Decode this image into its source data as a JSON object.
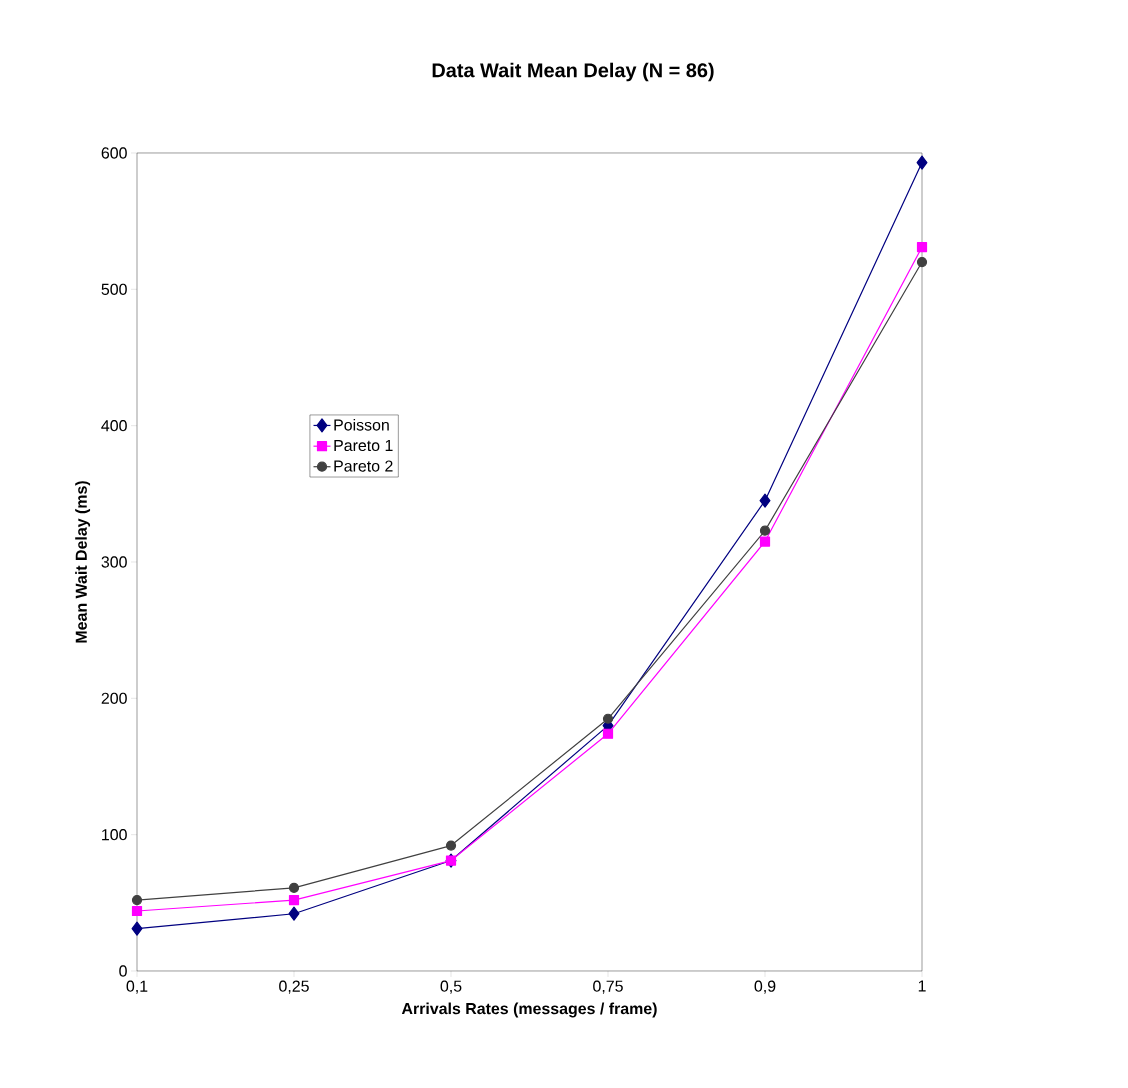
{
  "chart_data": {
    "type": "line",
    "title": "Data Wait Mean Delay (N = 86)",
    "xlabel": "Arrivals Rates (messages / frame)",
    "ylabel": "Mean Wait Delay (ms)",
    "categories": [
      "0,1",
      "0,25",
      "0,5",
      "0,75",
      "0,9",
      "1"
    ],
    "series": [
      {
        "name": "Poisson",
        "color": "#000080",
        "marker": "diamond",
        "values": [
          31,
          42,
          81,
          180,
          345,
          593
        ]
      },
      {
        "name": "Pareto 1",
        "color": "#ff00ff",
        "marker": "square",
        "values": [
          44,
          52,
          81,
          174,
          315,
          531
        ]
      },
      {
        "name": "Pareto 2",
        "color": "#404040",
        "marker": "circle",
        "values": [
          52,
          61,
          92,
          185,
          323,
          520
        ]
      }
    ],
    "ylim": [
      0,
      600
    ],
    "yticks": [
      0,
      100,
      200,
      300,
      400,
      500,
      600
    ],
    "grid": false,
    "legend": "left"
  }
}
